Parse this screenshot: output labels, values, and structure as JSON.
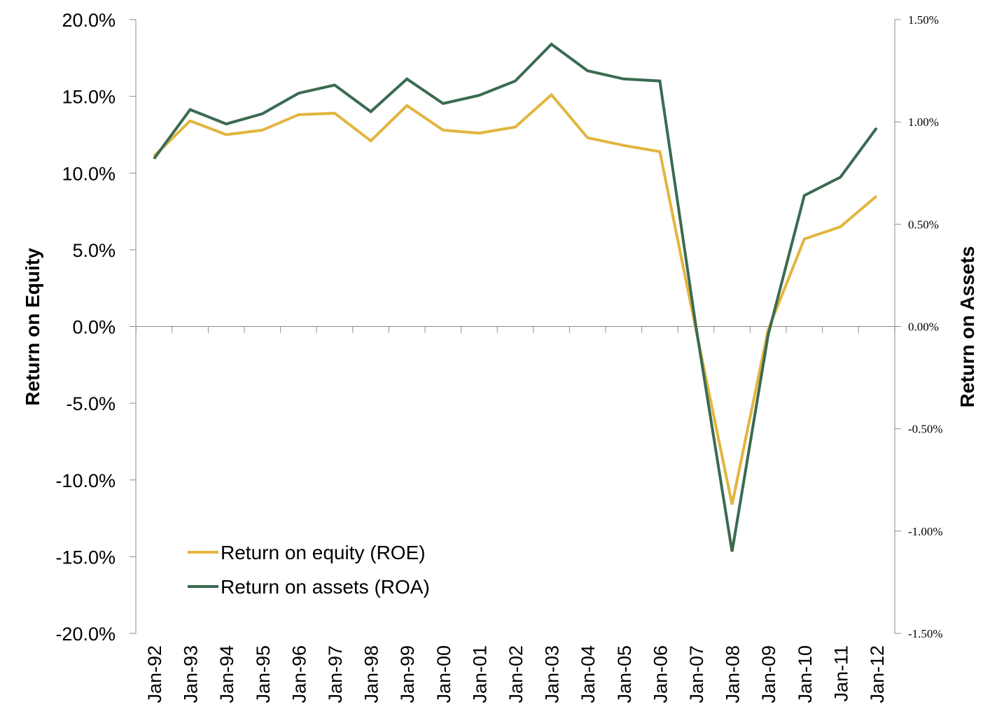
{
  "chart_data": {
    "type": "line",
    "title": "",
    "categories": [
      "Jan-92",
      "Jan-93",
      "Jan-94",
      "Jan-95",
      "Jan-96",
      "Jan-97",
      "Jan-98",
      "Jan-99",
      "Jan-00",
      "Jan-01",
      "Jan-02",
      "Jan-03",
      "Jan-04",
      "Jan-05",
      "Jan-06",
      "Jan-07",
      "Jan-08",
      "Jan-09",
      "Jan-10",
      "Jan-11",
      "Jan-12"
    ],
    "ylabel_left": "Return on Equity",
    "ylabel_right": "Return on Assets",
    "y_left": {
      "lim": [
        -20,
        20
      ],
      "ticks": [
        20,
        15,
        10,
        5,
        0,
        -5,
        -10,
        -15,
        -20
      ],
      "tick_labels": [
        "20.0%",
        "15.0%",
        "10.0%",
        "5.0%",
        "0.0%",
        "-5.0%",
        "-10.0%",
        "-15.0%",
        "-20.0%"
      ]
    },
    "y_right": {
      "lim": [
        -1.5,
        1.5
      ],
      "ticks": [
        1.5,
        1.0,
        0.5,
        0.0,
        -0.5,
        -1.0,
        -1.5
      ],
      "tick_labels": [
        "1.50%",
        "1.00%",
        "0.50%",
        "0.00%",
        "-0.50%",
        "-1.00%",
        "-1.50%"
      ]
    },
    "series": [
      {
        "name": "Return on equity (ROE)",
        "axis": "left",
        "color": "#E3B53F",
        "values": [
          11.1,
          13.4,
          12.5,
          12.8,
          13.8,
          13.9,
          12.1,
          14.4,
          12.8,
          12.6,
          13.0,
          15.1,
          12.3,
          11.8,
          11.4,
          -0.2,
          -11.6,
          -0.2,
          5.7,
          6.5,
          8.5
        ]
      },
      {
        "name": "Return on assets (ROA)",
        "axis": "right",
        "color": "#3A6B51",
        "values": [
          0.82,
          1.06,
          0.99,
          1.04,
          1.14,
          1.18,
          1.05,
          1.21,
          1.09,
          1.13,
          1.2,
          1.38,
          1.25,
          1.21,
          1.2,
          0.0,
          -1.1,
          -0.04,
          0.64,
          0.73,
          0.97
        ]
      }
    ],
    "legend_position": "bottom-left",
    "grid": false
  }
}
